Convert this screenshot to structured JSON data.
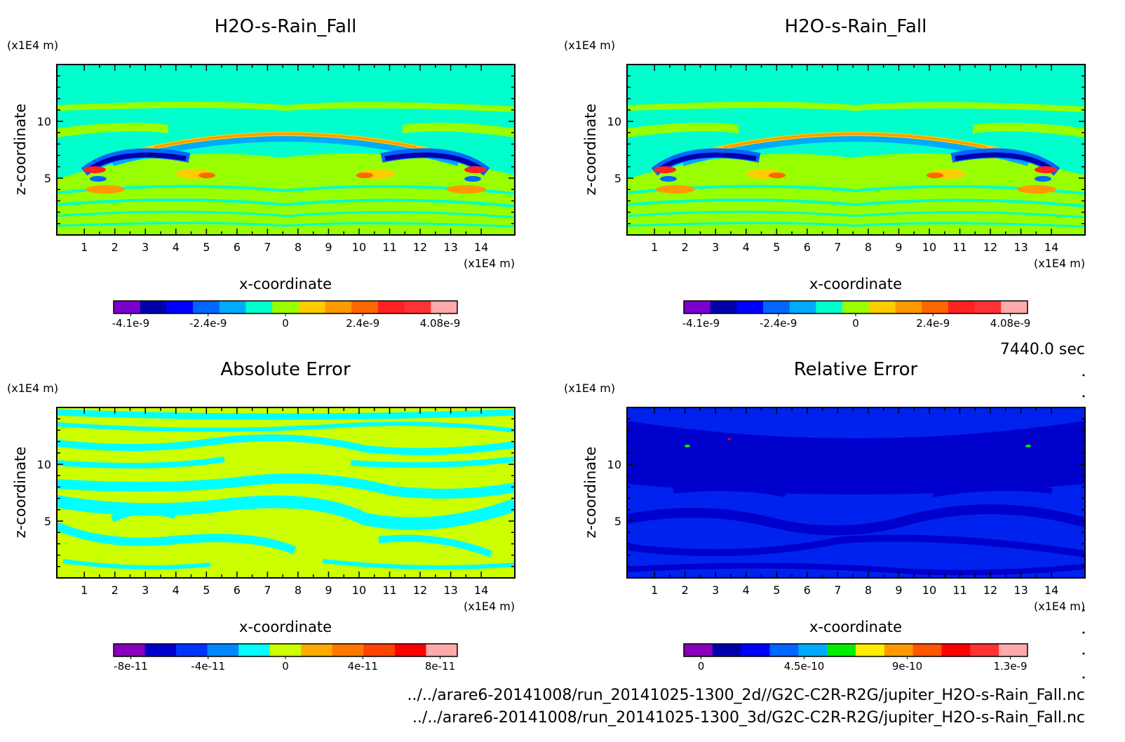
{
  "time_label": "7440.0 sec",
  "footer_lines": [
    "../../arare6-20141008/run_20141025-1300_2d//G2C-C2R-R2G/jupiter_H2O-s-Rain_Fall.nc",
    "../../arare6-20141008/run_20141025-1300_3d/G2C-C2R-R2G/jupiter_H2O-s-Rain_Fall.nc"
  ],
  "chart_data": [
    {
      "type": "heatmap",
      "title": "H2O-s-Rain_Fall",
      "xlabel": "x-coordinate",
      "ylabel": "z-coordinate",
      "x_unit": "(x1E4 m)",
      "y_unit": "(x1E4 m)",
      "xlim": [
        0.1,
        15.1
      ],
      "ylim": [
        0,
        15
      ],
      "x_ticks": [
        "1",
        "2",
        "3",
        "4",
        "5",
        "6",
        "7",
        "8",
        "9",
        "10",
        "11",
        "12",
        "13",
        "14"
      ],
      "y_ticks": [
        "5",
        "10"
      ],
      "background_color": "#00ffcc",
      "colorbar": {
        "colors": [
          "#7a00cc",
          "#0000aa",
          "#0000ff",
          "#0066ff",
          "#00aaff",
          "#00ffcc",
          "#99ff00",
          "#ffcc00",
          "#ff9900",
          "#ff6600",
          "#ff2222",
          "#ff3333",
          "#ffaaaa"
        ],
        "labels": [
          "-4.1e-9",
          "-2.4e-9",
          "0",
          "2.4e-9",
          "4.08e-9"
        ]
      }
    },
    {
      "type": "heatmap",
      "title": "H2O-s-Rain_Fall",
      "xlabel": "x-coordinate",
      "ylabel": "z-coordinate",
      "x_unit": "(x1E4 m)",
      "y_unit": "(x1E4 m)",
      "xlim": [
        0.1,
        15.1
      ],
      "ylim": [
        0,
        15
      ],
      "x_ticks": [
        "1",
        "2",
        "3",
        "4",
        "5",
        "6",
        "7",
        "8",
        "9",
        "10",
        "11",
        "12",
        "13",
        "14"
      ],
      "y_ticks": [
        "5",
        "10"
      ],
      "background_color": "#00ffcc",
      "colorbar": {
        "colors": [
          "#7a00cc",
          "#0000aa",
          "#0000ff",
          "#0066ff",
          "#00aaff",
          "#00ffcc",
          "#99ff00",
          "#ffcc00",
          "#ff9900",
          "#ff6600",
          "#ff2222",
          "#ff3333",
          "#ffaaaa"
        ],
        "labels": [
          "-4.1e-9",
          "-2.4e-9",
          "0",
          "2.4e-9",
          "4.08e-9"
        ]
      }
    },
    {
      "type": "heatmap",
      "title": "Absolute Error",
      "xlabel": "x-coordinate",
      "ylabel": "z-coordinate",
      "x_unit": "(x1E4 m)",
      "y_unit": "(x1E4 m)",
      "xlim": [
        0.1,
        15.1
      ],
      "ylim": [
        0,
        15
      ],
      "x_ticks": [
        "1",
        "2",
        "3",
        "4",
        "5",
        "6",
        "7",
        "8",
        "9",
        "10",
        "11",
        "12",
        "13",
        "14"
      ],
      "y_ticks": [
        "5",
        "10"
      ],
      "background_color": "#ccff00",
      "colorbar": {
        "colors": [
          "#8800bb",
          "#0000cc",
          "#0033ff",
          "#0088ff",
          "#00ffff",
          "#ccff00",
          "#ffaa00",
          "#ff7700",
          "#ff4400",
          "#ff0000",
          "#ffaaaa"
        ],
        "labels": [
          "-8e-11",
          "-4e-11",
          "0",
          "4e-11",
          "8e-11"
        ]
      }
    },
    {
      "type": "heatmap",
      "title": "Relative Error",
      "xlabel": "x-coordinate",
      "ylabel": "z-coordinate",
      "x_unit": "(x1E4 m)",
      "y_unit": "(x1E4 m)",
      "xlim": [
        0.1,
        15.1
      ],
      "ylim": [
        0,
        15
      ],
      "x_ticks": [
        "1",
        "2",
        "3",
        "4",
        "5",
        "6",
        "7",
        "8",
        "9",
        "10",
        "11",
        "12",
        "13",
        "14"
      ],
      "y_ticks": [
        "5",
        "10"
      ],
      "background_color": "#0022ee",
      "colorbar": {
        "colors": [
          "#8800bb",
          "#0000aa",
          "#0000ff",
          "#0066ff",
          "#00aaff",
          "#00ee00",
          "#ffee00",
          "#ff9900",
          "#ff5500",
          "#ff0000",
          "#ff3333",
          "#ffaaaa"
        ],
        "labels": [
          "0",
          "4.5e-10",
          "9e-10",
          "1.3e-9"
        ]
      }
    }
  ]
}
